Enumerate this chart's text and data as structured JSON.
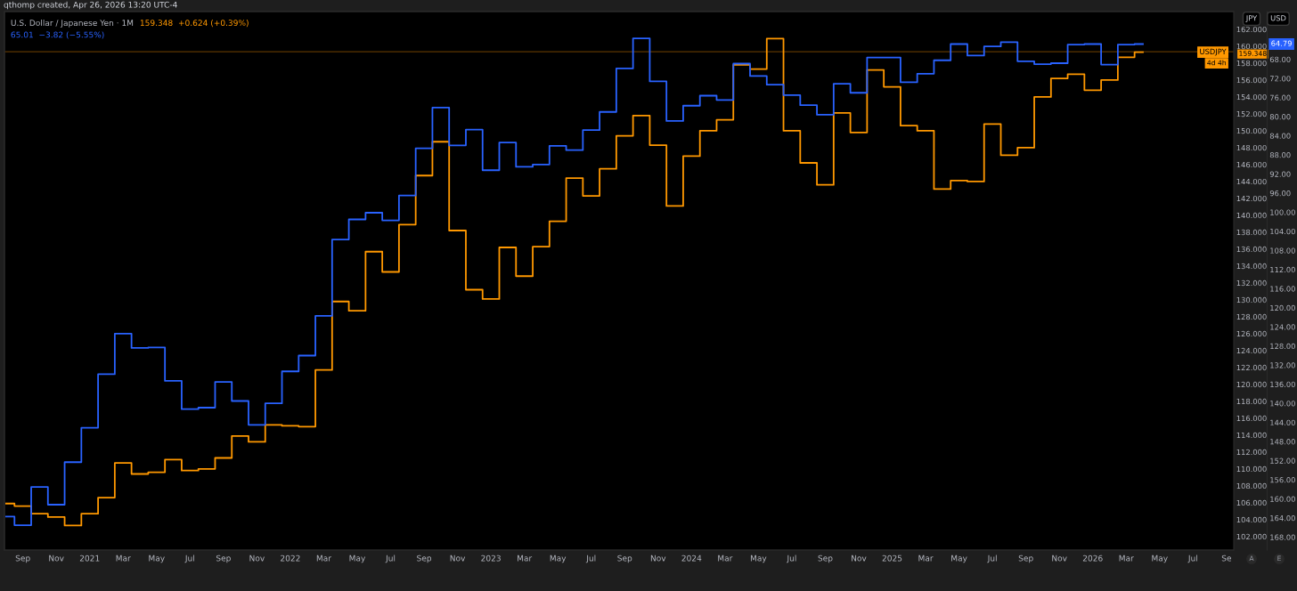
{
  "chart_data": {
    "type": "step",
    "annotations": [
      "qthomp created, Apr 26, 2026 13:20 UTC-4",
      "159.348  +0.624 (+0.39%)",
      "65.01  −3.82 (−5.55%)",
      "USDJPY",
      "159.348",
      "4d 4h",
      "64.79",
      "JPY",
      "USD",
      "A",
      "E"
    ],
    "x": [
      "2020-08",
      "2020-09",
      "2020-10",
      "2020-11",
      "2020-12",
      "2021-01",
      "2021-02",
      "2021-03",
      "2021-04",
      "2021-05",
      "2021-06",
      "2021-07",
      "2021-08",
      "2021-09",
      "2021-10",
      "2021-11",
      "2021-12",
      "2022-01",
      "2022-02",
      "2022-03",
      "2022-04",
      "2022-05",
      "2022-06",
      "2022-07",
      "2022-08",
      "2022-09",
      "2022-10",
      "2022-11",
      "2022-12",
      "2023-01",
      "2023-02",
      "2023-03",
      "2023-04",
      "2023-05",
      "2023-06",
      "2023-07",
      "2023-08",
      "2023-09",
      "2023-10",
      "2023-11",
      "2023-12",
      "2024-01",
      "2024-02",
      "2024-03",
      "2024-04",
      "2024-05",
      "2024-06",
      "2024-07",
      "2024-08",
      "2024-09",
      "2024-10",
      "2024-11",
      "2024-12",
      "2025-01",
      "2025-02",
      "2025-03",
      "2025-04",
      "2025-05",
      "2025-06",
      "2025-07",
      "2025-08",
      "2025-09",
      "2025-10",
      "2025-11",
      "2025-12",
      "2026-01",
      "2026-02",
      "2026-03",
      "2026-04"
    ],
    "series": [
      {
        "name": "U.S. Dollar / Japanese Yen · 1M",
        "color": "#ff9800",
        "values": [
          105.9,
          105.6,
          104.7,
          104.3,
          103.3,
          104.7,
          106.6,
          110.7,
          109.4,
          109.6,
          111.1,
          109.8,
          110.0,
          111.3,
          113.9,
          113.2,
          115.2,
          115.1,
          115.0,
          121.7,
          129.8,
          128.7,
          135.7,
          133.3,
          138.9,
          144.7,
          148.7,
          138.2,
          131.2,
          130.1,
          136.2,
          132.8,
          136.3,
          139.3,
          144.4,
          142.3,
          145.5,
          149.4,
          151.8,
          148.3,
          141.1,
          147.0,
          150.0,
          151.3,
          157.8,
          157.3,
          160.9,
          150.0,
          146.2,
          143.6,
          152.1,
          149.8,
          157.2,
          155.2,
          150.6,
          150.0,
          143.1,
          144.1,
          144.0,
          150.8,
          147.1,
          148.0,
          154.0,
          156.2,
          156.7,
          154.8,
          156.0,
          158.7,
          159.3
        ]
      },
      {
        "color": "#2962ff",
        "axis": "y2",
        "values": [
          163.7,
          165.5,
          157.5,
          161.2,
          152.3,
          145.1,
          133.9,
          125.4,
          128.4,
          128.3,
          135.3,
          141.2,
          140.9,
          135.5,
          139.5,
          144.5,
          140.0,
          133.3,
          130.0,
          121.7,
          105.7,
          101.5,
          100.1,
          101.7,
          96.5,
          86.6,
          78.1,
          86.0,
          82.7,
          91.2,
          85.4,
          90.5,
          90.0,
          86.1,
          87.0,
          82.8,
          79.0,
          69.9,
          63.6,
          72.6,
          80.9,
          77.7,
          75.6,
          76.5,
          68.9,
          71.5,
          73.3,
          75.5,
          77.6,
          79.6,
          73.1,
          75.0,
          67.6,
          67.6,
          72.8,
          71.0,
          68.2,
          64.8,
          67.2,
          65.3,
          64.4,
          68.4,
          69.0,
          68.8,
          64.9,
          64.8,
          69.1,
          64.9,
          64.8
        ]
      }
    ],
    "xlim": [
      "2020-07-28",
      "2026-09-14"
    ],
    "xticks": [
      {
        "value": "2020-09",
        "label": "Sep"
      },
      {
        "value": "2020-11",
        "label": "Nov"
      },
      {
        "value": "2021-01",
        "label": "2021"
      },
      {
        "value": "2021-03",
        "label": "Mar"
      },
      {
        "value": "2021-05",
        "label": "May"
      },
      {
        "value": "2021-07",
        "label": "Jul"
      },
      {
        "value": "2021-09",
        "label": "Sep"
      },
      {
        "value": "2021-11",
        "label": "Nov"
      },
      {
        "value": "2022-01",
        "label": "2022"
      },
      {
        "value": "2022-03",
        "label": "Mar"
      },
      {
        "value": "2022-05",
        "label": "May"
      },
      {
        "value": "2022-07",
        "label": "Jul"
      },
      {
        "value": "2022-09",
        "label": "Sep"
      },
      {
        "value": "2022-11",
        "label": "Nov"
      },
      {
        "value": "2023-01",
        "label": "2023"
      },
      {
        "value": "2023-03",
        "label": "Mar"
      },
      {
        "value": "2023-05",
        "label": "May"
      },
      {
        "value": "2023-07",
        "label": "Jul"
      },
      {
        "value": "2023-09",
        "label": "Sep"
      },
      {
        "value": "2023-11",
        "label": "Nov"
      },
      {
        "value": "2024-01",
        "label": "2024"
      },
      {
        "value": "2024-03",
        "label": "Mar"
      },
      {
        "value": "2024-05",
        "label": "May"
      },
      {
        "value": "2024-07",
        "label": "Jul"
      },
      {
        "value": "2024-09",
        "label": "Sep"
      },
      {
        "value": "2024-11",
        "label": "Nov"
      },
      {
        "value": "2025-01",
        "label": "2025"
      },
      {
        "value": "2025-03",
        "label": "Mar"
      },
      {
        "value": "2025-05",
        "label": "May"
      },
      {
        "value": "2025-07",
        "label": "Jul"
      },
      {
        "value": "2025-09",
        "label": "Sep"
      },
      {
        "value": "2025-11",
        "label": "Nov"
      },
      {
        "value": "2026-01",
        "label": "2026"
      },
      {
        "value": "2026-03",
        "label": "Mar"
      },
      {
        "value": "2026-05",
        "label": "May"
      },
      {
        "value": "2026-07",
        "label": "Jul"
      },
      {
        "value": "2026-09",
        "label": "Se"
      }
    ],
    "ylim": [
      100.4,
      164.1
    ],
    "yticks": [
      {
        "value": 102,
        "label": "102.000"
      },
      {
        "value": 104,
        "label": "104.000"
      },
      {
        "value": 106,
        "label": "106.000"
      },
      {
        "value": 108,
        "label": "108.000"
      },
      {
        "value": 110,
        "label": "110.000"
      },
      {
        "value": 112,
        "label": "112.000"
      },
      {
        "value": 114,
        "label": "114.000"
      },
      {
        "value": 116,
        "label": "116.000"
      },
      {
        "value": 118,
        "label": "118.000"
      },
      {
        "value": 120,
        "label": "120.000"
      },
      {
        "value": 122,
        "label": "122.000"
      },
      {
        "value": 124,
        "label": "124.000"
      },
      {
        "value": 126,
        "label": "126.000"
      },
      {
        "value": 128,
        "label": "128.000"
      },
      {
        "value": 130,
        "label": "130.000"
      },
      {
        "value": 132,
        "label": "132.000"
      },
      {
        "value": 134,
        "label": "134.000"
      },
      {
        "value": 136,
        "label": "136.000"
      },
      {
        "value": 138,
        "label": "138.000"
      },
      {
        "value": 140,
        "label": "140.000"
      },
      {
        "value": 142,
        "label": "142.000"
      },
      {
        "value": 144,
        "label": "144.000"
      },
      {
        "value": 146,
        "label": "146.000"
      },
      {
        "value": 148,
        "label": "148.000"
      },
      {
        "value": 150,
        "label": "150.000"
      },
      {
        "value": 152,
        "label": "152.000"
      },
      {
        "value": 154,
        "label": "154.000"
      },
      {
        "value": 156,
        "label": "156.000"
      },
      {
        "value": 158,
        "label": "158.000"
      },
      {
        "value": 160,
        "label": "160.000"
      },
      {
        "value": 162,
        "label": "162.000"
      }
    ],
    "y2lim": [
      170.7,
      58.0
    ],
    "y2ticks": [
      {
        "value": 68,
        "label": "68.00"
      },
      {
        "value": 72,
        "label": "72.00"
      },
      {
        "value": 76,
        "label": "76.00"
      },
      {
        "value": 80,
        "label": "80.00"
      },
      {
        "value": 84,
        "label": "84.00"
      },
      {
        "value": 88,
        "label": "88.00"
      },
      {
        "value": 92,
        "label": "92.00"
      },
      {
        "value": 96,
        "label": "96.00"
      },
      {
        "value": 100,
        "label": "100.00"
      },
      {
        "value": 104,
        "label": "104.00"
      },
      {
        "value": 108,
        "label": "108.00"
      },
      {
        "value": 112,
        "label": "112.00"
      },
      {
        "value": 116,
        "label": "116.00"
      },
      {
        "value": 120,
        "label": "120.00"
      },
      {
        "value": 124,
        "label": "124.00"
      },
      {
        "value": 128,
        "label": "128.00"
      },
      {
        "value": 132,
        "label": "132.00"
      },
      {
        "value": 136,
        "label": "136.00"
      },
      {
        "value": 140,
        "label": "140.00"
      },
      {
        "value": 144,
        "label": "144.00"
      },
      {
        "value": 148,
        "label": "148.00"
      },
      {
        "value": 152,
        "label": "152.00"
      },
      {
        "value": 156,
        "label": "156.00"
      },
      {
        "value": 160,
        "label": "160.00"
      },
      {
        "value": 164,
        "label": "164.00"
      },
      {
        "value": 168,
        "label": "168.00"
      }
    ],
    "ref_lines": [
      {
        "axis": "y",
        "value": 159.348,
        "color": "#5c3600"
      }
    ],
    "grid": false
  }
}
